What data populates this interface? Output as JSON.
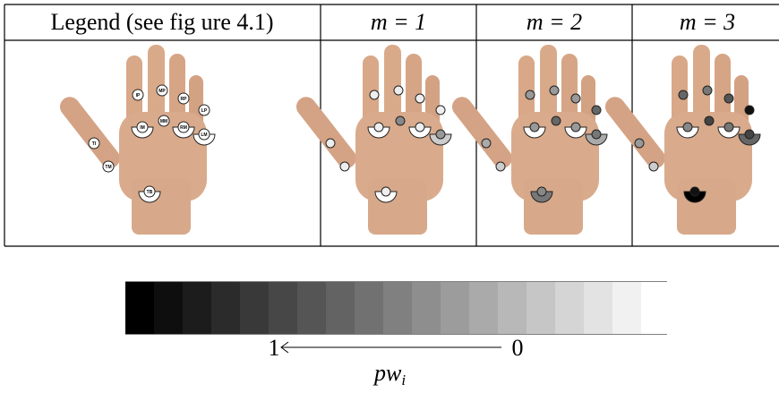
{
  "table": {
    "headers": [
      "Legend (see fig ure 4.1)",
      "m = 1",
      "m = 2",
      "m = 3"
    ],
    "legend_markers": [
      "IP",
      "MP",
      "RP",
      "LP",
      "IM",
      "MM",
      "RM",
      "LM",
      "TI",
      "TM",
      "TB"
    ]
  },
  "colorbar": {
    "low_label": "1",
    "high_label": "0",
    "axis_label": "pw",
    "axis_label_subscript": "i"
  }
}
